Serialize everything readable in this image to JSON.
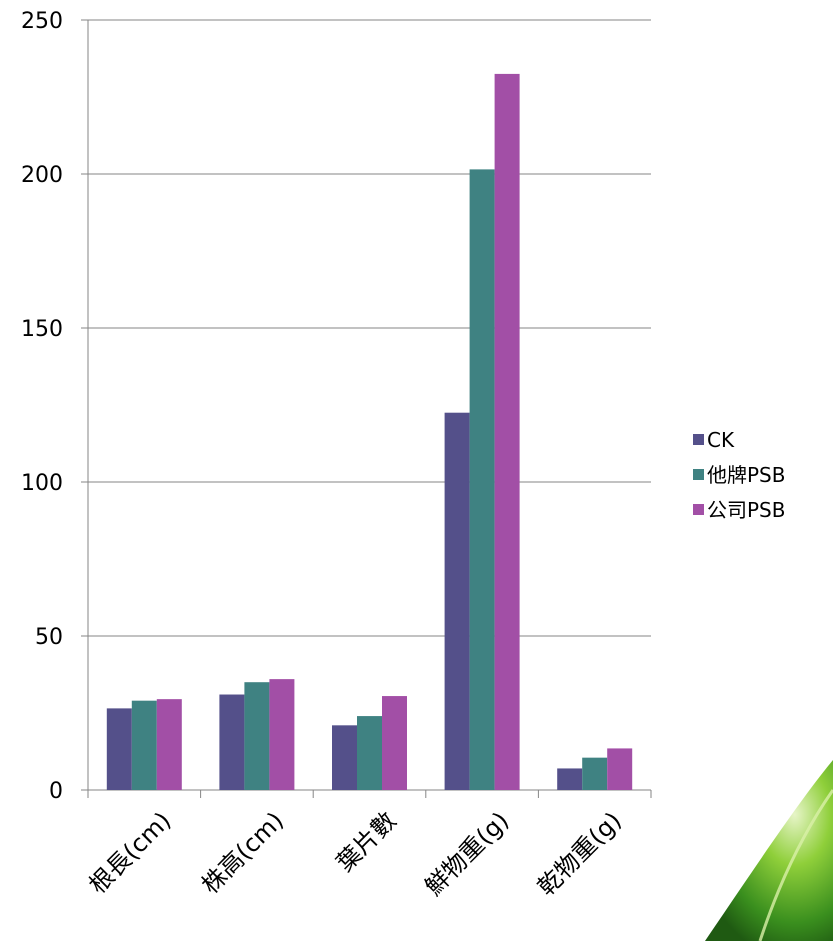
{
  "chart_data": {
    "type": "bar",
    "title": "",
    "xlabel": "",
    "ylabel": "",
    "categories": [
      "根長(cm)",
      "株高(cm)",
      "葉片數",
      "鮮物重(g)",
      "乾物重(g)"
    ],
    "series": [
      {
        "name": "CK",
        "color": "#54508A",
        "values": [
          26.5,
          31,
          21,
          122.5,
          7
        ]
      },
      {
        "name": "他牌PSB",
        "color": "#3F8282",
        "values": [
          29,
          35,
          24,
          201.5,
          10.5
        ]
      },
      {
        "name": "公司PSB",
        "color": "#A24FA6",
        "values": [
          29.5,
          36,
          30.5,
          232.5,
          13.5
        ]
      }
    ],
    "ylim": [
      0,
      250
    ],
    "yticks": [
      0,
      50,
      100,
      150,
      200,
      250
    ],
    "grid": true,
    "legend": "right"
  },
  "decoration": {
    "leaf_colors": [
      "#e7f5c8",
      "#8fcf3a",
      "#3a8f1e",
      "#1f5a12"
    ]
  }
}
